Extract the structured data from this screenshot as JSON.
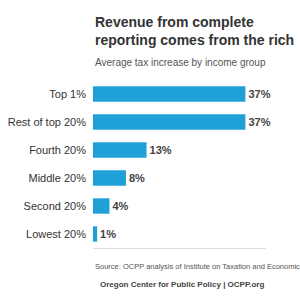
{
  "chart_data": {
    "type": "bar",
    "title": "Revenue from complete reporting comes from the rich",
    "subtitle": "Average tax increase by income group",
    "categories": [
      "Top 1%",
      "Rest of top 20%",
      "Fourth 20%",
      "Middle 20%",
      "Second 20%",
      "Lowest 20%"
    ],
    "values": [
      37,
      37,
      13,
      8,
      4,
      1
    ],
    "value_labels": [
      "37%",
      "37%",
      "13%",
      "8%",
      "4%",
      "1%"
    ],
    "color": "#1fa0d6",
    "orientation": "horizontal",
    "data_labels": true,
    "tick_labels": "y",
    "grid": false,
    "xlim": [
      0,
      42
    ],
    "xticks": [],
    "annotations": [
      "Source: OCPP analysis of Institute on Taxation and Economic Policy data.",
      "Oregon Center for Public Policy | OCPP.org"
    ]
  }
}
